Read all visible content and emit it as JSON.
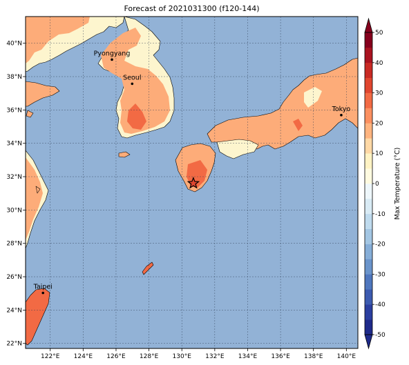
{
  "map": {
    "title": "Forecast of 2021031300 (f120-144)",
    "lon_range": [
      120.5,
      140.7
    ],
    "lat_range": [
      21.7,
      41.6
    ],
    "lon_ticks": [
      "122°E",
      "124°E",
      "126°E",
      "128°E",
      "130°E",
      "132°E",
      "134°E",
      "136°E",
      "138°E",
      "140°E"
    ],
    "lat_ticks": [
      "22°N",
      "24°N",
      "26°N",
      "28°N",
      "30°N",
      "32°N",
      "34°N",
      "36°N",
      "38°N",
      "40°N"
    ],
    "ocean_color": "#92b2d6",
    "cities": [
      {
        "name": "Pyongyang",
        "lon": 125.75,
        "lat": 39.02
      },
      {
        "name": "Seoul",
        "lon": 126.98,
        "lat": 37.57
      },
      {
        "name": "Tokyo",
        "lon": 139.69,
        "lat": 35.69
      },
      {
        "name": "Taipei",
        "lon": 121.56,
        "lat": 25.03
      }
    ],
    "marker": {
      "type": "star",
      "lon": 130.7,
      "lat": 31.6
    }
  },
  "colorbar": {
    "label": "Max Temperature (°C)",
    "ticks": [
      "-50",
      "-40",
      "-30",
      "-20",
      "-10",
      "0",
      "10",
      "20",
      "30",
      "40",
      "50"
    ],
    "levels": [
      -50,
      -45,
      -40,
      -35,
      -30,
      -25,
      -20,
      -15,
      -10,
      -5,
      0,
      5,
      10,
      15,
      20,
      25,
      30,
      35,
      40,
      45,
      50
    ],
    "colors": [
      "#1e2a8a",
      "#2b3fa0",
      "#3c5bb0",
      "#4f77be",
      "#6a94cb",
      "#86aed8",
      "#a3c6e3",
      "#bfdbee",
      "#d9ebf5",
      "#eef7fb",
      "#fffbe0",
      "#fff3c4",
      "#ffd9a6",
      "#ffb47f",
      "#fc9060",
      "#f26a44",
      "#e0462f",
      "#c92a24",
      "#aa1320",
      "#86001d"
    ]
  }
}
